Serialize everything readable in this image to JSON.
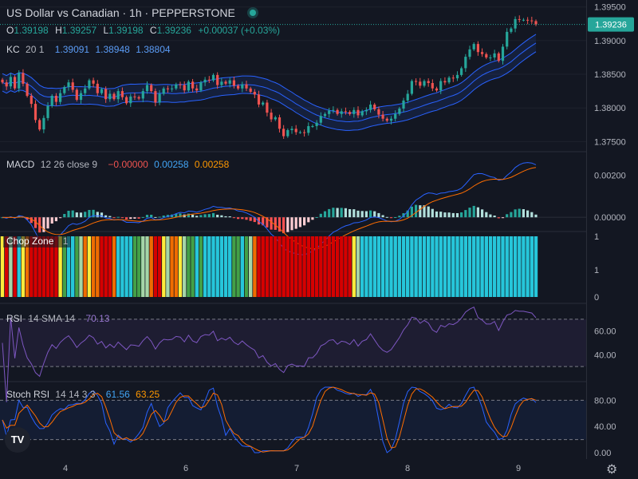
{
  "header": {
    "title": "US Dollar vs Canadian · 1h · PEPPERSTONE",
    "ohlc": [
      {
        "k": "O",
        "v": "1.39198"
      },
      {
        "k": "H",
        "v": "1.39257"
      },
      {
        "k": "L",
        "v": "1.39198"
      },
      {
        "k": "C",
        "v": "1.39236"
      },
      {
        "k": "",
        "v": "+0.00037 (+0.03%)"
      }
    ]
  },
  "legends": {
    "kc": {
      "name": "KC",
      "params": "20 1",
      "values": [
        "1.39091",
        "1.38948",
        "1.38804"
      ]
    },
    "macd": {
      "name": "MACD",
      "params": "12 26 close 9",
      "values": [
        "−0.00000",
        "0.00258",
        "0.00258"
      ]
    },
    "chop": {
      "name": "Chop Zone",
      "params": "1"
    },
    "rsi": {
      "name": "RSI",
      "params": "14 SMA 14",
      "values": [
        "70.13"
      ]
    },
    "stoch": {
      "name": "Stoch RSI",
      "params": "14 14 3 3",
      "values": [
        "61.56",
        "63.25"
      ]
    }
  },
  "price_axis": {
    "labels": [
      "1.39500",
      "1.39000",
      "1.38500",
      "1.38000",
      "1.37500"
    ],
    "last_price": "1.39236"
  },
  "macd_axis": {
    "labels": [
      "0.00200",
      "0.00000"
    ]
  },
  "chop_axis": {
    "labels": [
      "1",
      "1",
      "0"
    ]
  },
  "rsi_axis": {
    "labels": [
      "60.00",
      "40.00"
    ]
  },
  "stoch_axis": {
    "labels": [
      "80.00",
      "40.00",
      "0.00"
    ]
  },
  "time_axis": {
    "labels": [
      "4",
      "6",
      "7",
      "8",
      "9"
    ]
  },
  "colors": {
    "up": "#26a69a",
    "down": "#ef5350",
    "kc_line": "#2962ff",
    "kc_fill": "#2962ff",
    "macd_line": "#2962ff",
    "signal_line": "#ff6d00",
    "rsi_line": "#7e57c2",
    "stoch_k": "#2962ff",
    "stoch_d": "#ff6d00"
  },
  "chart_data": [
    {
      "type": "candlestick",
      "title": "US Dollar vs Canadian · 1h · PEPPERSTONE",
      "x_ticks": [
        "4",
        "6",
        "7",
        "8",
        "9"
      ],
      "ylim": [
        1.3735,
        1.3958
      ],
      "y_ticks": [
        1.395,
        1.39,
        1.385,
        1.38,
        1.375
      ],
      "close_series": [
        1.3838,
        1.3832,
        1.3846,
        1.3829,
        1.3852,
        1.3836,
        1.3818,
        1.3806,
        1.3782,
        1.3768,
        1.3785,
        1.3803,
        1.3818,
        1.3809,
        1.3822,
        1.3831,
        1.3838,
        1.3827,
        1.3812,
        1.3822,
        1.3829,
        1.3841,
        1.3836,
        1.3822,
        1.3828,
        1.3813,
        1.3821,
        1.3813,
        1.3825,
        1.3816,
        1.3807,
        1.3817,
        1.3816,
        1.3814,
        1.3825,
        1.3834,
        1.3825,
        1.3808,
        1.3821,
        1.3829,
        1.3828,
        1.3829,
        1.3835,
        1.3834,
        1.3826,
        1.3839,
        1.3829,
        1.3826,
        1.3838,
        1.3842,
        1.3841,
        1.3849,
        1.3834,
        1.3839,
        1.3836,
        1.3841,
        1.3833,
        1.3829,
        1.3835,
        1.3829,
        1.3824,
        1.382,
        1.3805,
        1.3808,
        1.3793,
        1.3783,
        1.3786,
        1.3769,
        1.3758,
        1.3767,
        1.3769,
        1.3764,
        1.3764,
        1.3763,
        1.3773,
        1.3773,
        1.3778,
        1.3788,
        1.3791,
        1.3796,
        1.3797,
        1.3791,
        1.3795,
        1.3794,
        1.3791,
        1.3797,
        1.3789,
        1.3795,
        1.3797,
        1.3805,
        1.3798,
        1.379,
        1.3784,
        1.3781,
        1.3784,
        1.3791,
        1.3799,
        1.3811,
        1.3821,
        1.384,
        1.3839,
        1.3833,
        1.384,
        1.3837,
        1.3829,
        1.3826,
        1.384,
        1.3838,
        1.3845,
        1.3844,
        1.3849,
        1.3859,
        1.3876,
        1.3887,
        1.3895,
        1.3883,
        1.388,
        1.3875,
        1.3875,
        1.3881,
        1.387,
        1.3891,
        1.3913,
        1.3918,
        1.3932,
        1.3931,
        1.3931,
        1.393,
        1.3929,
        1.3924
      ]
    },
    {
      "type": "line",
      "title": "MACD",
      "ylim": [
        -0.0006,
        0.003
      ],
      "series": [
        {
          "name": "MACD"
        },
        {
          "name": "Signal"
        },
        {
          "name": "Histogram"
        }
      ]
    },
    {
      "type": "bar",
      "title": "Chop Zone",
      "ylim": [
        0,
        1
      ]
    },
    {
      "type": "line",
      "title": "RSI",
      "ylim": [
        20,
        80
      ],
      "bands": [
        30,
        70
      ]
    },
    {
      "type": "line",
      "title": "Stoch RSI",
      "ylim": [
        0,
        100
      ],
      "bands": [
        20,
        80
      ]
    }
  ]
}
